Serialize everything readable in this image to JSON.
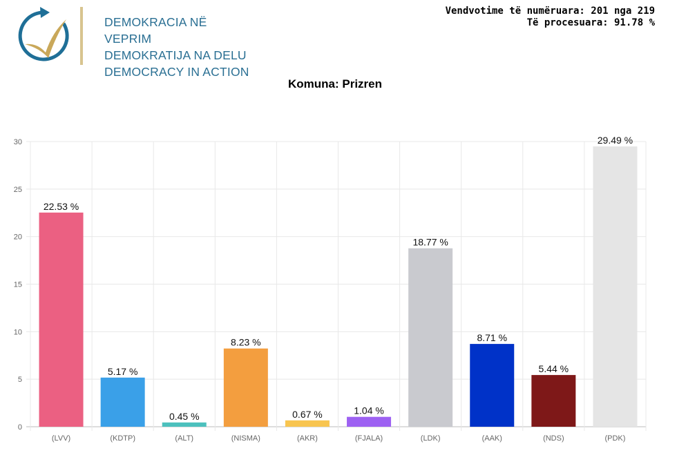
{
  "logo": {
    "lines": [
      "DEMOKRACIA NË VEPRIM",
      "DEMOKRATIJA NA DELU",
      "DEMOCRACY IN ACTION"
    ],
    "colors": {
      "circle": "#1f6f97",
      "check": "#c9a85a"
    }
  },
  "stats": {
    "counted": "Vendvotime të numëruara: 201 nga 219",
    "processed": "Të procesuara: 91.78 %"
  },
  "chart_data": {
    "type": "bar",
    "title": "Komuna: Prizren",
    "categories": [
      "(LVV)",
      "(KDTP)",
      "(ALT)",
      "(NISMA)",
      "(AKR)",
      "(FJALA)",
      "(LDK)",
      "(AAK)",
      "(NDS)",
      "(PDK)"
    ],
    "values": [
      22.53,
      5.17,
      0.45,
      8.23,
      0.67,
      1.04,
      18.77,
      8.71,
      5.44,
      29.49
    ],
    "data_labels": [
      "22.53 %",
      "5.17 %",
      "0.45 %",
      "8.23 %",
      "0.67 %",
      "1.04 %",
      "18.77 %",
      "8.71 %",
      "5.44 %",
      "29.49 %"
    ],
    "colors": [
      "#eb6082",
      "#3aa0e8",
      "#4cc0bd",
      "#f39e3f",
      "#f8c550",
      "#9d61f2",
      "#c9cacf",
      "#0032c8",
      "#7e1818",
      "#e5e5e5"
    ],
    "xlabel": "",
    "ylabel": "",
    "ylim": [
      0,
      30
    ],
    "yticks": [
      0,
      5,
      10,
      15,
      20,
      25,
      30
    ],
    "grid": true,
    "legend": "none"
  }
}
